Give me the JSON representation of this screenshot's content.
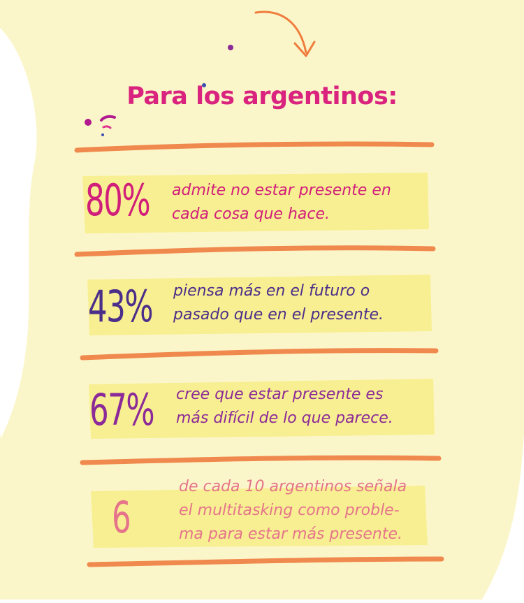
{
  "title": "Para los argentinos:",
  "colors": {
    "background": "#fbf6c9",
    "title": "#d9237e",
    "divider": "#f0894e",
    "highlight": "#f8ef92",
    "arrow": "#ef7d3d"
  },
  "stats": [
    {
      "value": "80%",
      "lines": [
        "admite no estar presente en",
        "cada cosa que hace."
      ],
      "color": "#d11e7a"
    },
    {
      "value": "43%",
      "lines": [
        "piensa más en el futuro o",
        "pasado que en el presente."
      ],
      "color": "#4b2e8a"
    },
    {
      "value": "67%",
      "lines": [
        "cree que estar presente es",
        "más difícil de lo que parece."
      ],
      "color": "#8b2a98"
    },
    {
      "value": "6",
      "lines": [
        "de cada 10 argentinos señala",
        "el multitasking como proble-",
        "ma para estar más presente."
      ],
      "color": "#e5748b"
    }
  ]
}
